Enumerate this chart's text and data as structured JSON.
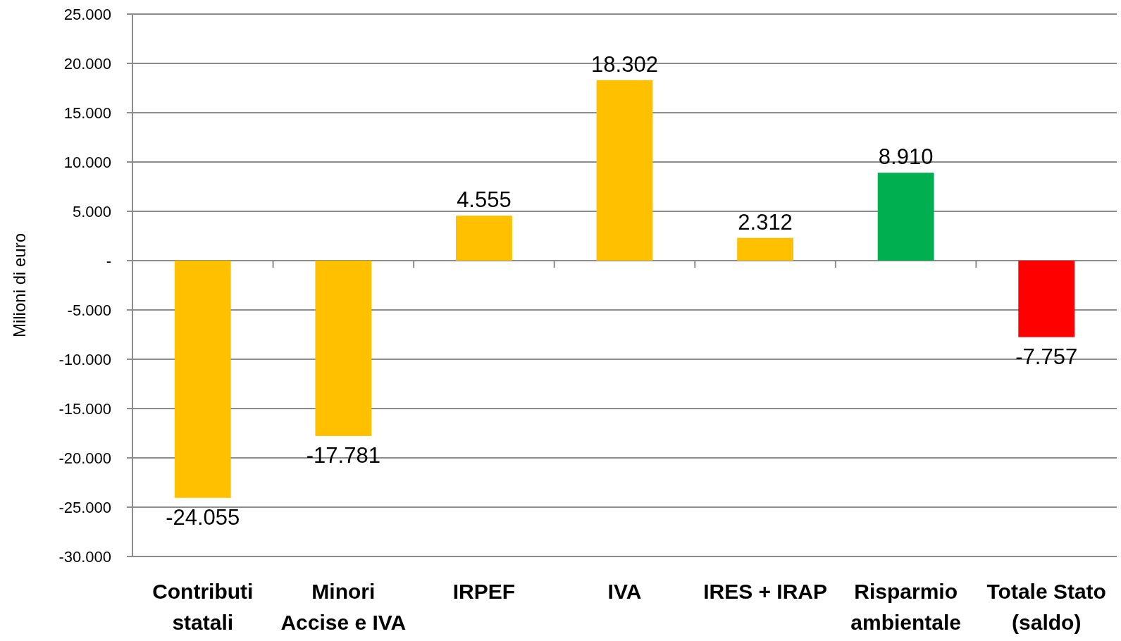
{
  "chart_data": {
    "type": "bar",
    "ylabel": "Milioni di euro",
    "categories": [
      "Contributi statali",
      "Minori Accise e IVA",
      "IRPEF",
      "IVA",
      "IRES + IRAP",
      "Risparmio ambientale",
      "Totale Stato (saldo)"
    ],
    "values": [
      -24055,
      -17781,
      4555,
      18302,
      2312,
      8910,
      -7757
    ],
    "colors": [
      "#ffc000",
      "#ffc000",
      "#ffc000",
      "#ffc000",
      "#ffc000",
      "#00b050",
      "#ff0000"
    ],
    "value_labels": [
      "-24.055",
      "-17.781",
      "4.555",
      "18.302",
      "2.312",
      "8.910",
      "-7.757"
    ],
    "ylim": [
      -30000,
      25000
    ],
    "yticks": [
      {
        "value": -30000,
        "label": "-30.000"
      },
      {
        "value": -25000,
        "label": "-25.000"
      },
      {
        "value": -20000,
        "label": "-20.000"
      },
      {
        "value": -15000,
        "label": "-15.000"
      },
      {
        "value": -10000,
        "label": "-10.000"
      },
      {
        "value": -5000,
        "label": "-5.000"
      },
      {
        "value": 0,
        "label": "-"
      },
      {
        "value": 5000,
        "label": "5.000"
      },
      {
        "value": 10000,
        "label": "10.000"
      },
      {
        "value": 15000,
        "label": "15.000"
      },
      {
        "value": 20000,
        "label": "20.000"
      },
      {
        "value": 25000,
        "label": "25.000"
      }
    ],
    "grid": "y"
  }
}
